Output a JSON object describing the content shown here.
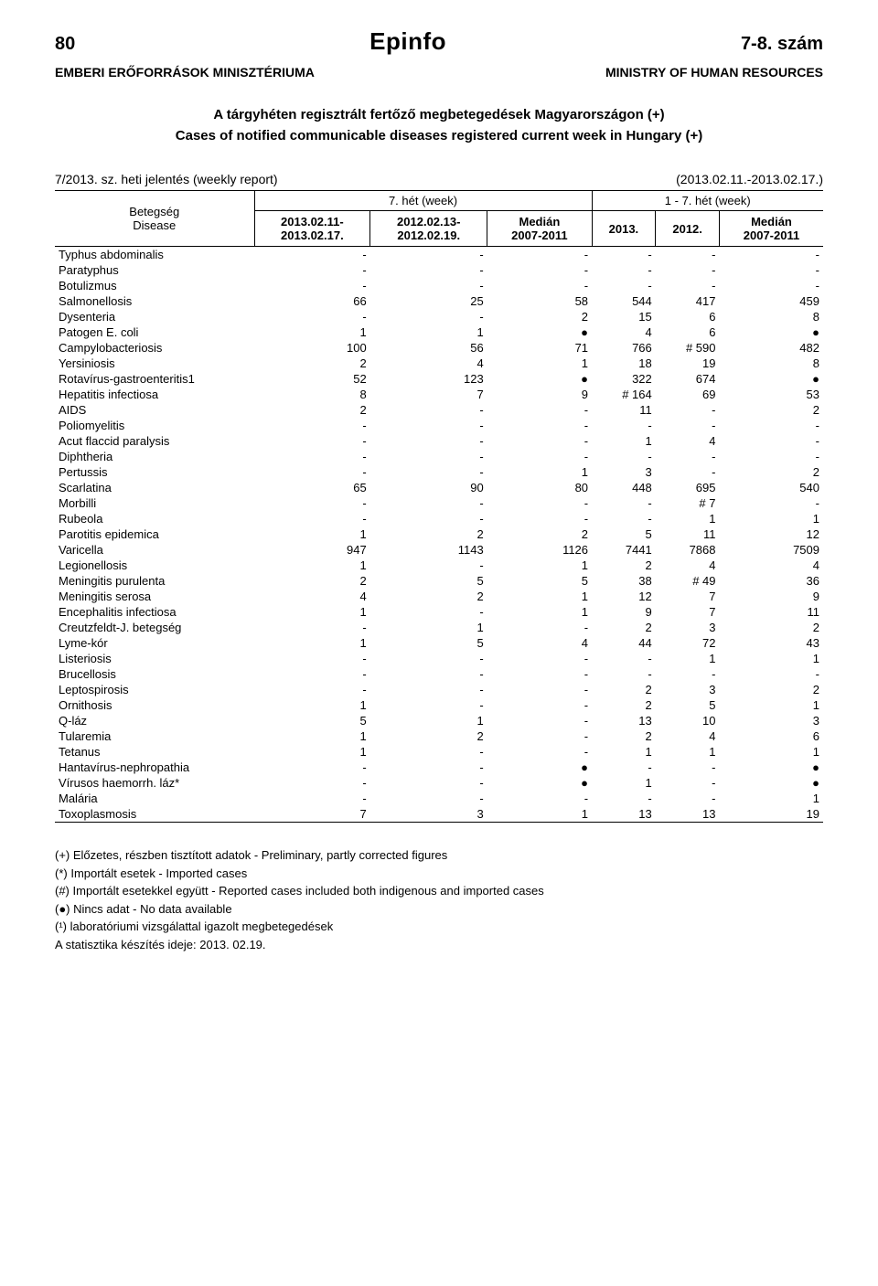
{
  "header": {
    "page_number": "80",
    "brand": "Epinfo",
    "issue": "7-8. szám",
    "ministry_hu": "EMBERI ERŐFORRÁSOK MINISZTÉRIUMA",
    "ministry_en": "MINISTRY OF HUMAN RESOURCES",
    "title_hu": "A tárgyhéten regisztrált fertőző megbetegedések Magyarországon (+)",
    "title_en": "Cases of notified communicable diseases registered current week in Hungary (+)",
    "report_label": "7/2013. sz. heti jelentés (weekly report)",
    "report_dates": "(2013.02.11.-2013.02.17.)"
  },
  "table": {
    "rowhead_line1": "Betegség",
    "rowhead_line2": "Disease",
    "group1": "7. hét (week)",
    "group2": "1 - 7. hét (week)",
    "col1_line1": "2013.02.11-",
    "col1_line2": "2013.02.17.",
    "col2_line1": "2012.02.13-",
    "col2_line2": "2012.02.19.",
    "col3_line1": "Medián",
    "col3_line2": "2007-2011",
    "col4": "2013.",
    "col5": "2012.",
    "col6_line1": "Medián",
    "col6_line2": "2007-2011",
    "rows": [
      {
        "disease": "Typhus abdominalis",
        "c": [
          "-",
          "-",
          "-",
          "-",
          "-",
          "-"
        ]
      },
      {
        "disease": "Paratyphus",
        "c": [
          "-",
          "-",
          "-",
          "-",
          "-",
          "-"
        ]
      },
      {
        "disease": "Botulizmus",
        "c": [
          "-",
          "-",
          "-",
          "-",
          "-",
          "-"
        ]
      },
      {
        "disease": "Salmonellosis",
        "c": [
          "66",
          "25",
          "58",
          "544",
          "417",
          "459"
        ]
      },
      {
        "disease": "Dysenteria",
        "c": [
          "-",
          "-",
          "2",
          "15",
          "6",
          "8"
        ]
      },
      {
        "disease": "Patogen E. coli",
        "c": [
          "1",
          "1",
          "●",
          "4",
          "6",
          "●"
        ],
        "small": "coli"
      },
      {
        "disease": "Campylobacteriosis",
        "c": [
          "100",
          "56",
          "71",
          "766",
          "# 590",
          "482"
        ]
      },
      {
        "disease": "Yersiniosis",
        "c": [
          "2",
          "4",
          "1",
          "18",
          "19",
          "8"
        ]
      },
      {
        "disease": "Rotavírus-gastroenteritis1",
        "c": [
          "52",
          "123",
          "●",
          "322",
          "674",
          "●"
        ]
      },
      {
        "disease": "Hepatitis infectiosa",
        "c": [
          "8",
          "7",
          "9",
          "# 164",
          "69",
          "53"
        ]
      },
      {
        "disease": "AIDS",
        "c": [
          "2",
          "-",
          "-",
          "11",
          "-",
          "2"
        ]
      },
      {
        "disease": "Poliomyelitis",
        "c": [
          "-",
          "-",
          "-",
          "-",
          "-",
          "-"
        ]
      },
      {
        "disease": "Acut flaccid paralysis",
        "c": [
          "-",
          "-",
          "-",
          "1",
          "4",
          "-"
        ]
      },
      {
        "disease": "Diphtheria",
        "c": [
          "-",
          "-",
          "-",
          "-",
          "-",
          "-"
        ]
      },
      {
        "disease": "Pertussis",
        "c": [
          "-",
          "-",
          "1",
          "3",
          "-",
          "2"
        ]
      },
      {
        "disease": "Scarlatina",
        "c": [
          "65",
          "90",
          "80",
          "448",
          "695",
          "540"
        ]
      },
      {
        "disease": "Morbilli",
        "c": [
          "-",
          "-",
          "-",
          "-",
          "# 7",
          "-"
        ]
      },
      {
        "disease": "Rubeola",
        "c": [
          "-",
          "-",
          "-",
          "-",
          "1",
          "1"
        ]
      },
      {
        "disease": "Parotitis epidemica",
        "c": [
          "1",
          "2",
          "2",
          "5",
          "11",
          "12"
        ]
      },
      {
        "disease": "Varicella",
        "c": [
          "947",
          "1143",
          "1126",
          "7441",
          "7868",
          "7509"
        ]
      },
      {
        "disease": "Legionellosis",
        "c": [
          "1",
          "-",
          "1",
          "2",
          "4",
          "4"
        ]
      },
      {
        "disease": "Meningitis purulenta",
        "c": [
          "2",
          "5",
          "5",
          "38",
          "# 49",
          "36"
        ]
      },
      {
        "disease": "Meningitis serosa",
        "c": [
          "4",
          "2",
          "1",
          "12",
          "7",
          "9"
        ]
      },
      {
        "disease": "Encephalitis infectiosa",
        "c": [
          "1",
          "-",
          "1",
          "9",
          "7",
          "11"
        ]
      },
      {
        "disease": "Creutzfeldt-J. betegség",
        "c": [
          "-",
          "1",
          "-",
          "2",
          "3",
          "2"
        ]
      },
      {
        "disease": "Lyme-kór",
        "c": [
          "1",
          "5",
          "4",
          "44",
          "72",
          "43"
        ]
      },
      {
        "disease": "Listeriosis",
        "c": [
          "-",
          "-",
          "-",
          "-",
          "1",
          "1"
        ]
      },
      {
        "disease": "Brucellosis",
        "c": [
          "-",
          "-",
          "-",
          "-",
          "-",
          "-"
        ]
      },
      {
        "disease": "Leptospirosis",
        "c": [
          "-",
          "-",
          "-",
          "2",
          "3",
          "2"
        ]
      },
      {
        "disease": "Ornithosis",
        "c": [
          "1",
          "-",
          "-",
          "2",
          "5",
          "1"
        ]
      },
      {
        "disease": "Q-láz",
        "c": [
          "5",
          "1",
          "-",
          "13",
          "10",
          "3"
        ]
      },
      {
        "disease": "Tularemia",
        "c": [
          "1",
          "2",
          "-",
          "2",
          "4",
          "6"
        ]
      },
      {
        "disease": "Tetanus",
        "c": [
          "1",
          "-",
          "-",
          "1",
          "1",
          "1"
        ]
      },
      {
        "disease": "Hantavírus-nephropathia",
        "c": [
          "-",
          "-",
          "●",
          "-",
          "-",
          "●"
        ]
      },
      {
        "disease": "Vírusos haemorrh. láz*",
        "c": [
          "-",
          "-",
          "●",
          "1",
          "-",
          "●"
        ]
      },
      {
        "disease": "Malária",
        "c": [
          "-",
          "-",
          "-",
          "-",
          "-",
          "1"
        ]
      },
      {
        "disease": "Toxoplasmosis",
        "c": [
          "7",
          "3",
          "1",
          "13",
          "13",
          "19"
        ]
      }
    ]
  },
  "footnotes": {
    "f1": "(+) Előzetes, részben tisztított adatok - Preliminary, partly corrected figures",
    "f2": "(*) Importált esetek - Imported cases",
    "f3": "(#) Importált esetekkel együtt - Reported cases included both indigenous and imported cases",
    "f4": "(●) Nincs adat - No data available",
    "f5": "(¹) laboratóriumi vizsgálattal igazolt megbetegedések",
    "f6": "A statisztika készítés ideje: 2013. 02.19."
  }
}
